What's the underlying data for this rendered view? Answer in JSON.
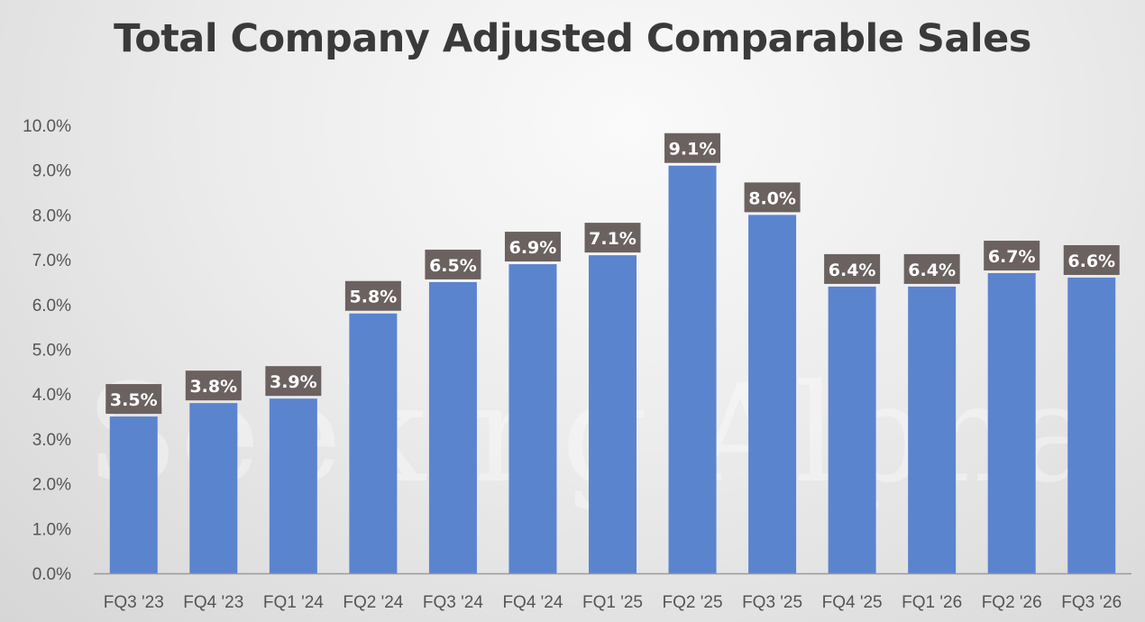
{
  "chart_data": {
    "type": "bar",
    "title": "Total Company Adjusted Comparable Sales",
    "categories": [
      "FQ3 '23",
      "FQ4 '23",
      "FQ1 '24",
      "FQ2 '24",
      "FQ3 '24",
      "FQ4 '24",
      "FQ1 '25",
      "FQ2 '25",
      "FQ3 '25",
      "FQ4 '25",
      "FQ1 '26",
      "FQ2 '26",
      "FQ3 '26"
    ],
    "values": [
      3.5,
      3.8,
      3.9,
      5.8,
      6.5,
      6.9,
      7.1,
      9.1,
      8.0,
      6.4,
      6.4,
      6.7,
      6.6
    ],
    "data_labels": [
      "3.5%",
      "3.8%",
      "3.9%",
      "5.8%",
      "6.5%",
      "6.9%",
      "7.1%",
      "9.1%",
      "8.0%",
      "6.4%",
      "6.4%",
      "6.7%",
      "6.6%"
    ],
    "ylim": [
      0,
      10
    ],
    "yticks": [
      "0.0%",
      "1.0%",
      "2.0%",
      "3.0%",
      "4.0%",
      "5.0%",
      "6.0%",
      "7.0%",
      "8.0%",
      "9.0%",
      "10.0%"
    ],
    "xlabel": "",
    "ylabel": "",
    "grid": false,
    "legend": "none",
    "colors": {
      "bar": "#5b84cf",
      "label_box": "#6b6260",
      "label_text": "#ffffff"
    }
  },
  "watermark": "Seeking Alpha α"
}
